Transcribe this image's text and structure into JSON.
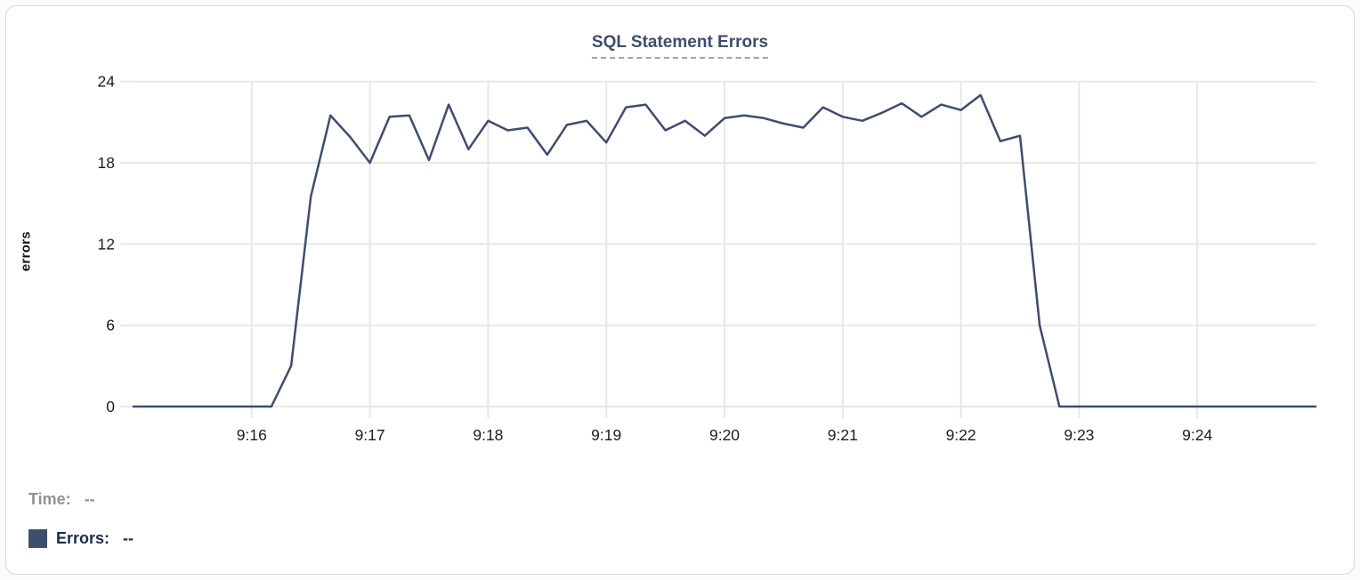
{
  "chart_data": {
    "type": "line",
    "title": "SQL Statement Errors",
    "ylabel": "errors",
    "xlabel": "",
    "grid": true,
    "ylim": [
      0,
      24
    ],
    "y_ticks": [
      0,
      6,
      12,
      18,
      24
    ],
    "x_start_time": "9:15:00",
    "x_range_seconds": [
      0,
      600
    ],
    "x_ticks": [
      {
        "label": "9:16",
        "seconds": 60
      },
      {
        "label": "9:17",
        "seconds": 120
      },
      {
        "label": "9:18",
        "seconds": 180
      },
      {
        "label": "9:19",
        "seconds": 240
      },
      {
        "label": "9:20",
        "seconds": 300
      },
      {
        "label": "9:21",
        "seconds": 360
      },
      {
        "label": "9:22",
        "seconds": 420
      },
      {
        "label": "9:23",
        "seconds": 480
      },
      {
        "label": "9:24",
        "seconds": 540
      }
    ],
    "series": [
      {
        "name": "Errors",
        "color": "#3e4d6e",
        "times": [
          "9:15:00",
          "9:15:10",
          "9:15:20",
          "9:15:30",
          "9:15:40",
          "9:15:50",
          "9:16:00",
          "9:16:10",
          "9:16:20",
          "9:16:30",
          "9:16:40",
          "9:16:50",
          "9:17:00",
          "9:17:10",
          "9:17:20",
          "9:17:30",
          "9:17:40",
          "9:17:50",
          "9:18:00",
          "9:18:10",
          "9:18:20",
          "9:18:30",
          "9:18:40",
          "9:18:50",
          "9:19:00",
          "9:19:10",
          "9:19:20",
          "9:19:30",
          "9:19:40",
          "9:19:50",
          "9:20:00",
          "9:20:10",
          "9:20:20",
          "9:20:30",
          "9:20:40",
          "9:20:50",
          "9:21:00",
          "9:21:10",
          "9:21:20",
          "9:21:30",
          "9:21:40",
          "9:21:50",
          "9:22:00",
          "9:22:10",
          "9:22:20",
          "9:22:30",
          "9:22:40",
          "9:22:50",
          "9:23:00",
          "9:23:10",
          "9:23:20",
          "9:23:30",
          "9:23:40",
          "9:23:50",
          "9:24:00",
          "9:24:10",
          "9:24:20",
          "9:24:30",
          "9:24:40",
          "9:24:50",
          "9:25:00"
        ],
        "values": [
          0,
          0,
          0,
          0,
          0,
          0,
          0,
          0,
          3,
          15.5,
          21.5,
          19.9,
          18,
          21.4,
          21.5,
          18.2,
          22.3,
          19,
          21.1,
          20.4,
          20.6,
          18.6,
          20.8,
          21.1,
          19.5,
          22.1,
          22.3,
          20.4,
          21.1,
          20,
          21.3,
          21.5,
          21.3,
          20.9,
          20.6,
          22.1,
          21.4,
          21.1,
          21.7,
          22.4,
          21.4,
          22.3,
          21.9,
          23,
          19.6,
          20,
          6,
          0,
          0,
          0,
          0,
          0,
          0,
          0,
          0,
          0,
          0,
          0,
          0,
          0,
          0
        ]
      }
    ],
    "legend_position": "bottom-left"
  },
  "legend": {
    "time_label": "Time:",
    "time_value": "--",
    "errors_label": "Errors:",
    "errors_value": "--",
    "swatch_color": "#3e4f6d"
  },
  "colors": {
    "line": "#3e4d6e",
    "grid": "#e7e7e7",
    "title": "#3c4e6f",
    "title_underline": "#98a3b8",
    "tick_text": "#1d1d1f",
    "time_gray": "#8e9299",
    "errors_navy": "#1c2b51"
  }
}
